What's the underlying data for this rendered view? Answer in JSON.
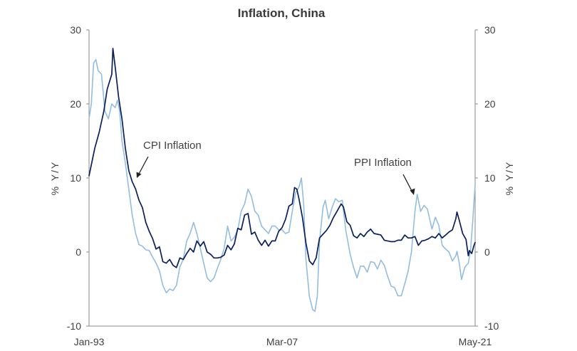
{
  "chart_data": {
    "type": "line",
    "title": "Inflation, China",
    "ylabel_left": "% Y/Y",
    "ylabel_right": "% Y/Y",
    "ylim": [
      -10,
      30
    ],
    "yticks": [
      "-10",
      "0",
      "10",
      "20",
      "30"
    ],
    "yticks_right": [
      "-10",
      "0",
      "10",
      "20",
      "30"
    ],
    "xlim": [
      "1993-01",
      "2021-05"
    ],
    "xtick_labels": [
      "Jan-93",
      "Mar-07",
      "May-21"
    ],
    "grid": false,
    "annotations": [
      "CPI Inflation",
      "PPI Inflation"
    ],
    "series": [
      {
        "name": "CPI Inflation",
        "color": "#0b1f5c",
        "points": [
          [
            "1993-01",
            10.3
          ],
          [
            "1993-06",
            14.0
          ],
          [
            "1993-10",
            16.2
          ],
          [
            "1994-02",
            19.0
          ],
          [
            "1994-05",
            22.0
          ],
          [
            "1994-07",
            23.0
          ],
          [
            "1994-09",
            24.0
          ],
          [
            "1994-10",
            27.5
          ],
          [
            "1994-12",
            25.0
          ],
          [
            "1995-03",
            21.0
          ],
          [
            "1995-06",
            18.0
          ],
          [
            "1995-09",
            14.0
          ],
          [
            "1995-12",
            11.0
          ],
          [
            "1996-03",
            9.5
          ],
          [
            "1996-06",
            8.5
          ],
          [
            "1996-09",
            7.0
          ],
          [
            "1996-12",
            6.0
          ],
          [
            "1997-03",
            4.0
          ],
          [
            "1997-06",
            2.8
          ],
          [
            "1997-09",
            1.8
          ],
          [
            "1997-12",
            0.4
          ],
          [
            "1998-03",
            0.7
          ],
          [
            "1998-06",
            -1.3
          ],
          [
            "1998-09",
            -1.5
          ],
          [
            "1998-12",
            -1.0
          ],
          [
            "1999-03",
            -1.8
          ],
          [
            "1999-06",
            -2.1
          ],
          [
            "1999-09",
            -0.8
          ],
          [
            "1999-12",
            -1.0
          ],
          [
            "2000-03",
            -0.2
          ],
          [
            "2000-06",
            0.5
          ],
          [
            "2000-09",
            0.0
          ],
          [
            "2000-12",
            1.5
          ],
          [
            "2001-03",
            0.8
          ],
          [
            "2001-06",
            1.4
          ],
          [
            "2001-09",
            0.0
          ],
          [
            "2001-12",
            -0.3
          ],
          [
            "2002-03",
            -0.8
          ],
          [
            "2002-06",
            -0.8
          ],
          [
            "2002-09",
            -0.7
          ],
          [
            "2002-12",
            -0.4
          ],
          [
            "2003-03",
            0.9
          ],
          [
            "2003-06",
            0.3
          ],
          [
            "2003-09",
            1.1
          ],
          [
            "2003-12",
            3.2
          ],
          [
            "2004-03",
            3.0
          ],
          [
            "2004-06",
            5.0
          ],
          [
            "2004-09",
            5.2
          ],
          [
            "2004-12",
            2.4
          ],
          [
            "2005-03",
            2.7
          ],
          [
            "2005-06",
            1.6
          ],
          [
            "2005-09",
            0.9
          ],
          [
            "2005-12",
            1.6
          ],
          [
            "2006-03",
            0.8
          ],
          [
            "2006-06",
            1.5
          ],
          [
            "2006-09",
            1.5
          ],
          [
            "2006-12",
            2.8
          ],
          [
            "2007-03",
            3.3
          ],
          [
            "2007-06",
            4.4
          ],
          [
            "2007-09",
            6.2
          ],
          [
            "2007-12",
            6.5
          ],
          [
            "2008-02",
            8.7
          ],
          [
            "2008-04",
            8.5
          ],
          [
            "2008-06",
            7.1
          ],
          [
            "2008-09",
            4.6
          ],
          [
            "2008-12",
            1.2
          ],
          [
            "2009-03",
            -1.2
          ],
          [
            "2009-06",
            -1.7
          ],
          [
            "2009-09",
            -0.8
          ],
          [
            "2009-12",
            1.9
          ],
          [
            "2010-03",
            2.4
          ],
          [
            "2010-06",
            2.9
          ],
          [
            "2010-09",
            3.6
          ],
          [
            "2010-12",
            4.6
          ],
          [
            "2011-03",
            5.4
          ],
          [
            "2011-07",
            6.5
          ],
          [
            "2011-09",
            6.1
          ],
          [
            "2011-12",
            4.1
          ],
          [
            "2012-03",
            3.6
          ],
          [
            "2012-06",
            2.2
          ],
          [
            "2012-09",
            1.9
          ],
          [
            "2012-12",
            2.5
          ],
          [
            "2013-03",
            2.1
          ],
          [
            "2013-06",
            2.7
          ],
          [
            "2013-09",
            3.1
          ],
          [
            "2013-12",
            2.5
          ],
          [
            "2014-03",
            2.4
          ],
          [
            "2014-06",
            2.3
          ],
          [
            "2014-09",
            1.6
          ],
          [
            "2014-12",
            1.5
          ],
          [
            "2015-03",
            1.4
          ],
          [
            "2015-06",
            1.4
          ],
          [
            "2015-09",
            1.6
          ],
          [
            "2015-12",
            1.6
          ],
          [
            "2016-03",
            2.3
          ],
          [
            "2016-06",
            1.9
          ],
          [
            "2016-09",
            1.9
          ],
          [
            "2016-12",
            2.1
          ],
          [
            "2017-03",
            0.9
          ],
          [
            "2017-06",
            1.5
          ],
          [
            "2017-09",
            1.6
          ],
          [
            "2017-12",
            1.8
          ],
          [
            "2018-03",
            2.1
          ],
          [
            "2018-06",
            1.9
          ],
          [
            "2018-09",
            2.5
          ],
          [
            "2018-12",
            1.9
          ],
          [
            "2019-03",
            2.3
          ],
          [
            "2019-06",
            2.7
          ],
          [
            "2019-09",
            3.0
          ],
          [
            "2019-12",
            4.5
          ],
          [
            "2020-01",
            5.4
          ],
          [
            "2020-03",
            4.3
          ],
          [
            "2020-06",
            2.5
          ],
          [
            "2020-09",
            1.7
          ],
          [
            "2020-11",
            -0.5
          ],
          [
            "2020-12",
            0.2
          ],
          [
            "2021-02",
            -0.2
          ],
          [
            "2021-04",
            0.9
          ],
          [
            "2021-05",
            1.3
          ]
        ]
      },
      {
        "name": "PPI Inflation",
        "color": "#93bde0",
        "points": [
          [
            "1993-01",
            18.0
          ],
          [
            "1993-03",
            20.0
          ],
          [
            "1993-05",
            25.5
          ],
          [
            "1993-07",
            26.0
          ],
          [
            "1993-09",
            24.5
          ],
          [
            "1993-12",
            24.0
          ],
          [
            "1994-03",
            19.0
          ],
          [
            "1994-06",
            18.0
          ],
          [
            "1994-09",
            20.0
          ],
          [
            "1994-12",
            19.5
          ],
          [
            "1995-02",
            20.5
          ],
          [
            "1995-04",
            19.0
          ],
          [
            "1995-06",
            15.0
          ],
          [
            "1995-09",
            12.0
          ],
          [
            "1995-12",
            8.5
          ],
          [
            "1996-03",
            5.0
          ],
          [
            "1996-06",
            2.5
          ],
          [
            "1996-09",
            1.0
          ],
          [
            "1996-12",
            0.8
          ],
          [
            "1997-03",
            0.3
          ],
          [
            "1997-06",
            0.2
          ],
          [
            "1997-09",
            -0.7
          ],
          [
            "1997-12",
            -1.5
          ],
          [
            "1998-03",
            -2.5
          ],
          [
            "1998-06",
            -4.5
          ],
          [
            "1998-09",
            -5.5
          ],
          [
            "1998-12",
            -5.0
          ],
          [
            "1999-03",
            -5.2
          ],
          [
            "1999-06",
            -4.5
          ],
          [
            "1999-09",
            -2.0
          ],
          [
            "1999-12",
            -1.0
          ],
          [
            "2000-03",
            1.5
          ],
          [
            "2000-06",
            2.5
          ],
          [
            "2000-09",
            4.0
          ],
          [
            "2000-12",
            2.5
          ],
          [
            "2001-03",
            0.5
          ],
          [
            "2001-06",
            -1.5
          ],
          [
            "2001-09",
            -3.5
          ],
          [
            "2001-12",
            -4.0
          ],
          [
            "2002-03",
            -3.5
          ],
          [
            "2002-06",
            -2.2
          ],
          [
            "2002-09",
            -1.0
          ],
          [
            "2002-12",
            0.5
          ],
          [
            "2003-03",
            3.5
          ],
          [
            "2003-06",
            1.5
          ],
          [
            "2003-09",
            2.0
          ],
          [
            "2003-12",
            3.0
          ],
          [
            "2004-03",
            5.5
          ],
          [
            "2004-06",
            6.5
          ],
          [
            "2004-09",
            8.5
          ],
          [
            "2004-12",
            7.5
          ],
          [
            "2005-03",
            5.5
          ],
          [
            "2005-06",
            5.0
          ],
          [
            "2005-09",
            3.5
          ],
          [
            "2005-12",
            3.0
          ],
          [
            "2006-03",
            2.5
          ],
          [
            "2006-06",
            3.5
          ],
          [
            "2006-09",
            3.5
          ],
          [
            "2006-12",
            3.0
          ],
          [
            "2007-03",
            3.0
          ],
          [
            "2007-06",
            2.5
          ],
          [
            "2007-09",
            2.7
          ],
          [
            "2007-12",
            5.5
          ],
          [
            "2008-03",
            8.0
          ],
          [
            "2008-06",
            8.8
          ],
          [
            "2008-08",
            10.0
          ],
          [
            "2008-10",
            6.5
          ],
          [
            "2008-12",
            -1.0
          ],
          [
            "2009-03",
            -6.0
          ],
          [
            "2009-06",
            -7.8
          ],
          [
            "2009-08",
            -8.0
          ],
          [
            "2009-10",
            -6.0
          ],
          [
            "2009-12",
            1.5
          ],
          [
            "2010-03",
            6.0
          ],
          [
            "2010-05",
            7.0
          ],
          [
            "2010-08",
            4.5
          ],
          [
            "2010-11",
            6.0
          ],
          [
            "2011-02",
            7.2
          ],
          [
            "2011-05",
            6.8
          ],
          [
            "2011-08",
            7.0
          ],
          [
            "2011-11",
            3.0
          ],
          [
            "2012-03",
            -0.3
          ],
          [
            "2012-06",
            -2.1
          ],
          [
            "2012-09",
            -3.5
          ],
          [
            "2012-12",
            -1.9
          ],
          [
            "2013-03",
            -1.9
          ],
          [
            "2013-06",
            -2.7
          ],
          [
            "2013-09",
            -1.3
          ],
          [
            "2013-12",
            -1.4
          ],
          [
            "2014-03",
            -2.3
          ],
          [
            "2014-06",
            -1.1
          ],
          [
            "2014-09",
            -1.8
          ],
          [
            "2014-12",
            -3.3
          ],
          [
            "2015-03",
            -4.6
          ],
          [
            "2015-06",
            -4.8
          ],
          [
            "2015-09",
            -5.9
          ],
          [
            "2015-12",
            -5.9
          ],
          [
            "2016-03",
            -4.3
          ],
          [
            "2016-06",
            -2.6
          ],
          [
            "2016-09",
            0.1
          ],
          [
            "2016-12",
            5.5
          ],
          [
            "2017-02",
            7.8
          ],
          [
            "2017-05",
            5.5
          ],
          [
            "2017-08",
            6.3
          ],
          [
            "2017-11",
            5.8
          ],
          [
            "2018-03",
            3.1
          ],
          [
            "2018-06",
            4.7
          ],
          [
            "2018-09",
            3.6
          ],
          [
            "2018-12",
            0.9
          ],
          [
            "2019-03",
            0.4
          ],
          [
            "2019-06",
            0.0
          ],
          [
            "2019-09",
            -1.2
          ],
          [
            "2019-12",
            -0.5
          ],
          [
            "2020-01",
            0.1
          ],
          [
            "2020-03",
            -1.5
          ],
          [
            "2020-05",
            -3.7
          ],
          [
            "2020-08",
            -2.0
          ],
          [
            "2020-11",
            -1.5
          ],
          [
            "2021-01",
            0.3
          ],
          [
            "2021-03",
            4.4
          ],
          [
            "2021-04",
            6.8
          ],
          [
            "2021-05",
            9.0
          ]
        ]
      }
    ]
  }
}
